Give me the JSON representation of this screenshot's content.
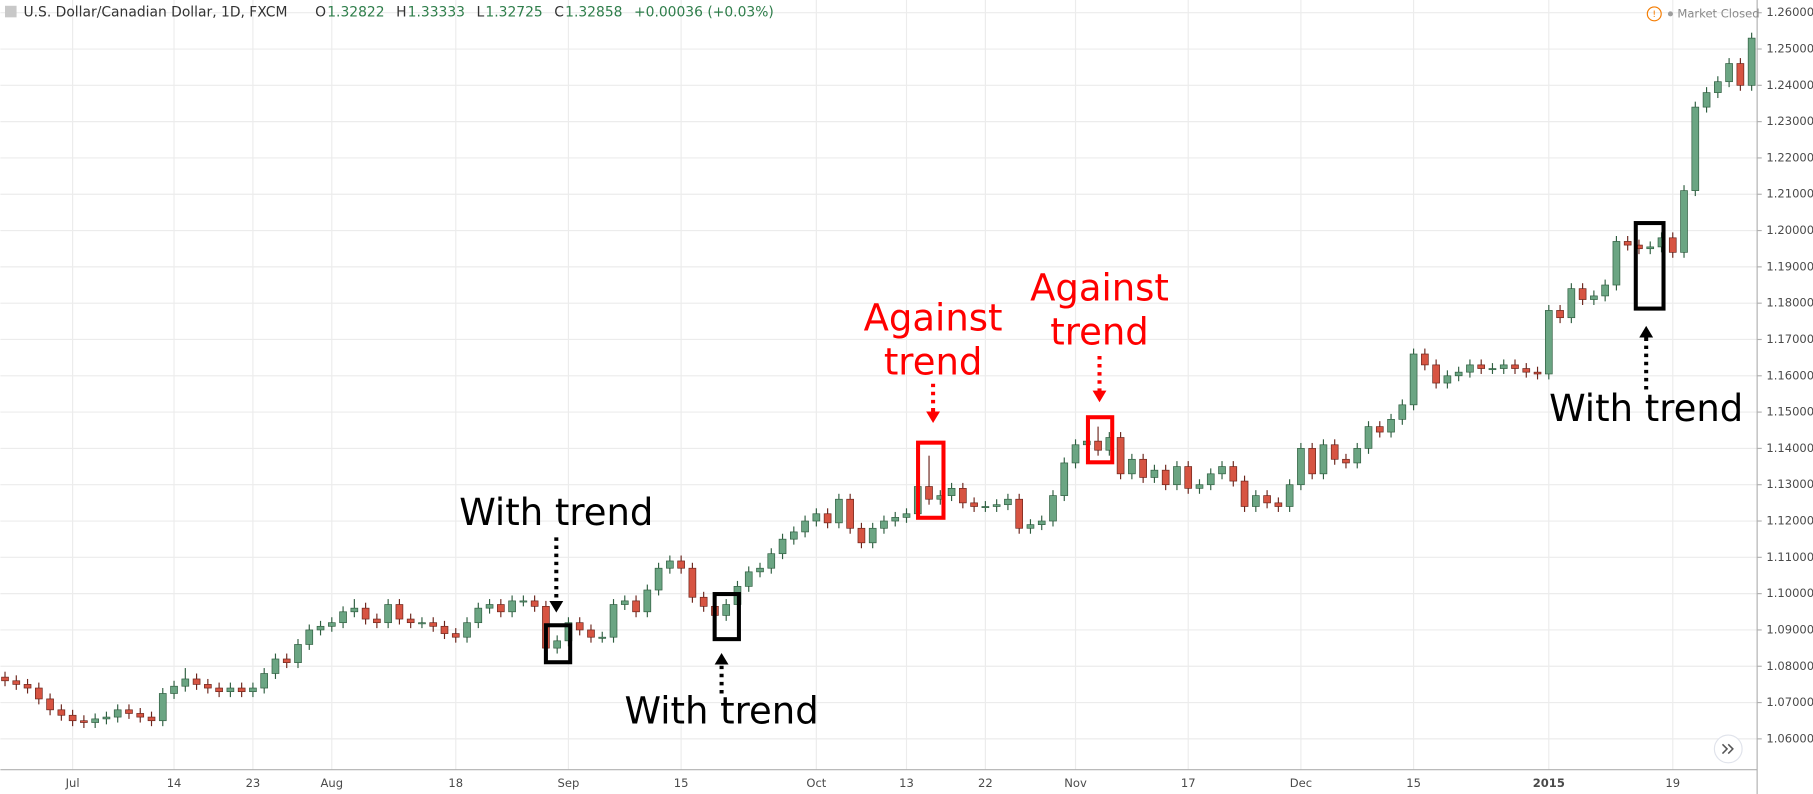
{
  "chart_data": {
    "type": "candlestick",
    "title": "U.S. Dollar/Canadian Dollar, 1D, FXCM",
    "ohlc_legend": [
      {
        "label": "O",
        "value": 1.32822
      },
      {
        "label": "H",
        "value": 1.33333
      },
      {
        "label": "L",
        "value": 1.32725
      },
      {
        "label": "C",
        "value": 1.32858
      }
    ],
    "change": "+0.00036 (+0.03%)",
    "status": "Market Closed",
    "up_color": "#6ba583",
    "down_color": "#d75442",
    "grid": true,
    "ylim": [
      1.0515,
      1.2635
    ],
    "yticks": [
      {
        "value": 1.06,
        "label": "1.06000"
      },
      {
        "value": 1.07,
        "label": "1.07000"
      },
      {
        "value": 1.08,
        "label": "1.08000"
      },
      {
        "value": 1.09,
        "label": "1.09000"
      },
      {
        "value": 1.1,
        "label": "1.10000"
      },
      {
        "value": 1.11,
        "label": "1.11000"
      },
      {
        "value": 1.12,
        "label": "1.12000"
      },
      {
        "value": 1.13,
        "label": "1.13000"
      },
      {
        "value": 1.14,
        "label": "1.14000"
      },
      {
        "value": 1.15,
        "label": "1.15000"
      },
      {
        "value": 1.16,
        "label": "1.16000"
      },
      {
        "value": 1.17,
        "label": "1.17000"
      },
      {
        "value": 1.18,
        "label": "1.18000"
      },
      {
        "value": 1.19,
        "label": "1.19000"
      },
      {
        "value": 1.2,
        "label": "1.20000"
      },
      {
        "value": 1.21,
        "label": "1.21000"
      },
      {
        "value": 1.22,
        "label": "1.22000"
      },
      {
        "value": 1.23,
        "label": "1.23000"
      },
      {
        "value": 1.24,
        "label": "1.24000"
      },
      {
        "value": 1.25,
        "label": "1.25000"
      },
      {
        "value": 1.26,
        "label": "1.26000"
      }
    ],
    "categories": [
      null,
      null,
      null,
      null,
      null,
      null,
      "Jul",
      null,
      null,
      null,
      null,
      null,
      null,
      null,
      null,
      "14",
      null,
      null,
      null,
      null,
      null,
      null,
      "23",
      null,
      null,
      null,
      null,
      null,
      null,
      "Aug",
      null,
      null,
      null,
      null,
      null,
      null,
      null,
      null,
      null,
      null,
      "18",
      null,
      null,
      null,
      null,
      null,
      null,
      null,
      null,
      null,
      "Sep",
      null,
      null,
      null,
      null,
      null,
      null,
      null,
      null,
      null,
      "15",
      null,
      null,
      null,
      null,
      null,
      null,
      null,
      null,
      null,
      null,
      null,
      "Oct",
      null,
      null,
      null,
      null,
      null,
      null,
      null,
      "13",
      null,
      null,
      null,
      null,
      null,
      null,
      "22",
      null,
      null,
      null,
      null,
      null,
      null,
      null,
      "Nov",
      null,
      null,
      null,
      null,
      null,
      null,
      null,
      null,
      null,
      "17",
      null,
      null,
      null,
      null,
      null,
      null,
      null,
      null,
      null,
      "Dec",
      null,
      null,
      null,
      null,
      null,
      null,
      null,
      null,
      null,
      "15",
      null,
      null,
      null,
      null,
      null,
      null,
      null,
      null,
      null,
      null,
      null,
      "2015",
      null,
      null,
      null,
      null,
      null,
      null,
      null,
      null,
      null,
      null,
      "19",
      null,
      null,
      null,
      null,
      null,
      null,
      null
    ],
    "open": [
      1.077,
      1.076,
      1.075,
      1.074,
      1.071,
      1.068,
      1.0665,
      1.065,
      1.0645,
      1.0655,
      1.066,
      1.068,
      1.067,
      1.066,
      1.065,
      1.0725,
      1.0745,
      1.0765,
      1.075,
      1.074,
      1.073,
      1.074,
      1.073,
      1.074,
      1.078,
      1.082,
      1.081,
      1.086,
      1.09,
      1.091,
      1.092,
      1.095,
      1.096,
      1.093,
      1.092,
      1.097,
      1.093,
      1.092,
      1.092,
      1.091,
      1.089,
      1.088,
      1.092,
      1.096,
      1.097,
      1.095,
      1.098,
      1.098,
      1.0965,
      1.085,
      1.087,
      1.092,
      1.09,
      1.088,
      1.088,
      1.097,
      1.098,
      1.095,
      1.101,
      1.107,
      1.109,
      1.107,
      1.099,
      1.0965,
      1.094,
      1.097,
      1.102,
      1.106,
      1.107,
      1.111,
      1.115,
      1.117,
      1.12,
      1.122,
      1.1195,
      1.126,
      1.118,
      1.114,
      1.118,
      1.12,
      1.121,
      1.122,
      1.1295,
      1.126,
      1.127,
      1.129,
      1.125,
      1.124,
      1.124,
      1.1245,
      1.126,
      1.118,
      1.119,
      1.12,
      1.127,
      1.136,
      1.141,
      1.142,
      1.1395,
      1.143,
      1.133,
      1.137,
      1.132,
      1.134,
      1.13,
      1.135,
      1.129,
      1.13,
      1.133,
      1.135,
      1.131,
      1.124,
      1.127,
      1.125,
      1.124,
      1.13,
      1.14,
      1.133,
      1.141,
      1.137,
      1.136,
      1.14,
      1.146,
      1.1445,
      1.148,
      1.152,
      1.166,
      1.163,
      1.158,
      1.16,
      1.161,
      1.163,
      1.162,
      1.162,
      1.163,
      1.162,
      1.161,
      1.1605,
      1.178,
      1.176,
      1.184,
      1.181,
      1.182,
      1.185,
      1.197,
      1.196,
      1.195,
      1.1955,
      1.198,
      1.194,
      1.211,
      1.234,
      1.238,
      1.241,
      1.246,
      1.24
    ],
    "high": [
      1.0785,
      1.0775,
      1.0765,
      1.0755,
      1.0725,
      1.0695,
      1.068,
      1.0665,
      1.067,
      1.0675,
      1.0695,
      1.0695,
      1.0685,
      1.0675,
      1.074,
      1.076,
      1.0795,
      1.078,
      1.0765,
      1.0755,
      1.0755,
      1.0755,
      1.0755,
      1.0795,
      1.0835,
      1.0835,
      1.0875,
      1.0915,
      1.0925,
      1.0935,
      1.0965,
      1.0985,
      1.0975,
      1.0945,
      1.0985,
      1.0985,
      1.0945,
      1.0935,
      1.0935,
      1.0925,
      1.0905,
      1.0935,
      1.0975,
      1.0985,
      1.0985,
      1.0995,
      1.0995,
      1.0995,
      1.098,
      1.0885,
      1.0935,
      1.0935,
      1.0915,
      1.0895,
      1.0985,
      1.0995,
      1.0995,
      1.1025,
      1.1085,
      1.1105,
      1.1105,
      1.1085,
      1.1005,
      1.098,
      1.0985,
      1.1035,
      1.1075,
      1.1085,
      1.1125,
      1.1165,
      1.1185,
      1.1215,
      1.1235,
      1.1235,
      1.1275,
      1.1275,
      1.1195,
      1.1195,
      1.1215,
      1.1225,
      1.1235,
      1.131,
      1.138,
      1.1285,
      1.1305,
      1.1305,
      1.1265,
      1.1255,
      1.126,
      1.1275,
      1.1275,
      1.1205,
      1.1215,
      1.1285,
      1.1375,
      1.1425,
      1.1435,
      1.146,
      1.1445,
      1.1445,
      1.1385,
      1.1385,
      1.1355,
      1.1355,
      1.1365,
      1.1365,
      1.1315,
      1.1345,
      1.1365,
      1.1365,
      1.1325,
      1.1285,
      1.1285,
      1.1265,
      1.1315,
      1.1415,
      1.1415,
      1.1425,
      1.1425,
      1.1385,
      1.1415,
      1.1475,
      1.1475,
      1.1495,
      1.1535,
      1.1675,
      1.1675,
      1.1645,
      1.1615,
      1.1625,
      1.1645,
      1.1645,
      1.1635,
      1.1645,
      1.1645,
      1.1635,
      1.1625,
      1.1795,
      1.1795,
      1.1855,
      1.1855,
      1.1835,
      1.1865,
      1.1985,
      1.1985,
      1.1975,
      1.197,
      1.1995,
      1.1995,
      1.2125,
      1.2355,
      1.2395,
      1.2425,
      1.2475,
      1.2475,
      1.2545
    ],
    "low": [
      1.0745,
      1.0735,
      1.0725,
      1.0695,
      1.0665,
      1.065,
      1.0635,
      1.063,
      1.063,
      1.064,
      1.0645,
      1.0655,
      1.0645,
      1.0635,
      1.0635,
      1.071,
      1.073,
      1.0735,
      1.0725,
      1.0715,
      1.0715,
      1.0715,
      1.0715,
      1.0725,
      1.0765,
      1.0795,
      1.0795,
      1.0845,
      1.0885,
      1.0895,
      1.0905,
      1.0935,
      1.0915,
      1.0905,
      1.0905,
      1.0915,
      1.0905,
      1.0905,
      1.0895,
      1.0875,
      1.0865,
      1.0865,
      1.0905,
      1.0945,
      1.0935,
      1.0935,
      1.0965,
      1.095,
      1.0835,
      1.0835,
      1.0855,
      1.0885,
      1.0865,
      1.0865,
      1.0865,
      1.0955,
      1.0935,
      1.0935,
      1.0995,
      1.1055,
      1.1055,
      1.0975,
      1.095,
      1.0925,
      1.0925,
      1.0955,
      1.1005,
      1.1045,
      1.1055,
      1.1095,
      1.1135,
      1.1155,
      1.1185,
      1.118,
      1.118,
      1.1165,
      1.1125,
      1.1125,
      1.1165,
      1.1185,
      1.1195,
      1.1205,
      1.1245,
      1.1245,
      1.1255,
      1.1235,
      1.1225,
      1.1225,
      1.1225,
      1.123,
      1.1165,
      1.1165,
      1.1175,
      1.1185,
      1.1255,
      1.1345,
      1.1395,
      1.138,
      1.138,
      1.1315,
      1.1315,
      1.1305,
      1.1305,
      1.1285,
      1.1285,
      1.1275,
      1.1275,
      1.1285,
      1.1315,
      1.1295,
      1.1225,
      1.1225,
      1.1235,
      1.1225,
      1.1225,
      1.1285,
      1.1315,
      1.1315,
      1.1355,
      1.1345,
      1.1345,
      1.1385,
      1.143,
      1.143,
      1.1465,
      1.1505,
      1.1615,
      1.1565,
      1.1565,
      1.1585,
      1.1595,
      1.1605,
      1.1605,
      1.1605,
      1.1605,
      1.1595,
      1.159,
      1.159,
      1.1745,
      1.1745,
      1.1795,
      1.1795,
      1.1805,
      1.1835,
      1.1945,
      1.1935,
      1.1935,
      1.194,
      1.1925,
      1.1925,
      1.2095,
      1.2325,
      1.2365,
      1.2395,
      1.2385,
      1.2385
    ],
    "close": [
      1.076,
      1.075,
      1.074,
      1.071,
      1.068,
      1.0665,
      1.065,
      1.0645,
      1.0655,
      1.066,
      1.068,
      1.067,
      1.066,
      1.065,
      1.0725,
      1.0745,
      1.0765,
      1.075,
      1.074,
      1.073,
      1.074,
      1.073,
      1.074,
      1.078,
      1.082,
      1.081,
      1.086,
      1.09,
      1.091,
      1.092,
      1.095,
      1.096,
      1.093,
      1.092,
      1.097,
      1.093,
      1.092,
      1.092,
      1.091,
      1.089,
      1.088,
      1.092,
      1.096,
      1.097,
      1.095,
      1.098,
      1.098,
      1.0965,
      1.085,
      1.087,
      1.092,
      1.09,
      1.088,
      1.088,
      1.097,
      1.098,
      1.095,
      1.101,
      1.107,
      1.109,
      1.107,
      1.099,
      1.0965,
      1.094,
      1.097,
      1.102,
      1.106,
      1.107,
      1.111,
      1.115,
      1.117,
      1.12,
      1.122,
      1.1195,
      1.126,
      1.118,
      1.114,
      1.118,
      1.12,
      1.121,
      1.122,
      1.1295,
      1.126,
      1.127,
      1.129,
      1.125,
      1.124,
      1.124,
      1.1245,
      1.126,
      1.118,
      1.119,
      1.12,
      1.127,
      1.136,
      1.141,
      1.142,
      1.1395,
      1.143,
      1.133,
      1.137,
      1.132,
      1.134,
      1.13,
      1.135,
      1.129,
      1.13,
      1.133,
      1.135,
      1.131,
      1.124,
      1.127,
      1.125,
      1.124,
      1.13,
      1.14,
      1.133,
      1.141,
      1.137,
      1.136,
      1.14,
      1.146,
      1.1445,
      1.148,
      1.152,
      1.166,
      1.163,
      1.158,
      1.16,
      1.161,
      1.163,
      1.162,
      1.162,
      1.163,
      1.162,
      1.161,
      1.1605,
      1.178,
      1.176,
      1.184,
      1.181,
      1.182,
      1.185,
      1.197,
      1.196,
      1.195,
      1.1955,
      1.198,
      1.194,
      1.211,
      1.234,
      1.238,
      1.241,
      1.246,
      1.24,
      1.253
    ],
    "annotations": [
      {
        "lines": [
          "With trend"
        ],
        "color": "#000000"
      },
      {
        "lines": [
          "With trend"
        ],
        "color": "#000000"
      },
      {
        "lines": [
          "Against",
          "trend"
        ],
        "color": "#ff0000"
      },
      {
        "lines": [
          "Against",
          "trend"
        ],
        "color": "#ff0000"
      },
      {
        "lines": [
          "With trend"
        ],
        "color": "#000000"
      }
    ]
  }
}
